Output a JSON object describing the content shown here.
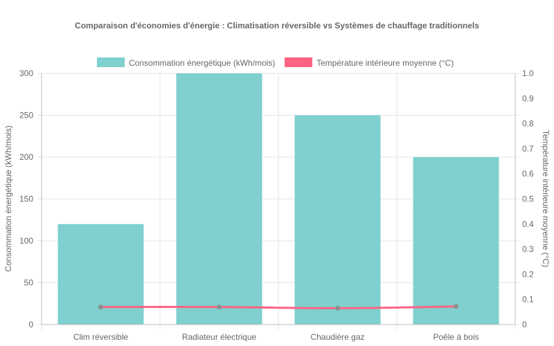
{
  "chart_data": {
    "type": "bar",
    "title": "Comparaison d'économies d'énergie : Climatisation réversible vs Systèmes de chauffage traditionnels",
    "categories": [
      "Clim réversible",
      "Radiateur électrique",
      "Chaudière gaz",
      "Poêle à bois"
    ],
    "series": [
      {
        "name": "Consommation énergétique (kWh/mois)",
        "type": "bar",
        "axis": "left",
        "color": "#7fd0cf",
        "values": [
          120,
          300,
          250,
          200
        ]
      },
      {
        "name": "Température intérieure moyenne (°C)",
        "type": "line",
        "axis": "right",
        "color": "#ff6384",
        "values": [
          0.07,
          0.07,
          0.065,
          0.072
        ]
      }
    ],
    "ylabel_left": "Consommation énergétique (kWh/mois)",
    "ylabel_right": "Température intérieure moyenne (°C)",
    "ylim_left": [
      0,
      300
    ],
    "ylim_right": [
      0,
      1
    ],
    "yticks_left": [
      0,
      50,
      100,
      150,
      200,
      250,
      300
    ],
    "yticks_right": [
      0,
      0.1,
      0.2,
      0.3,
      0.4,
      0.5,
      0.6,
      0.7,
      0.8,
      0.9,
      1.0
    ],
    "grid": true,
    "legend_position": "top"
  }
}
